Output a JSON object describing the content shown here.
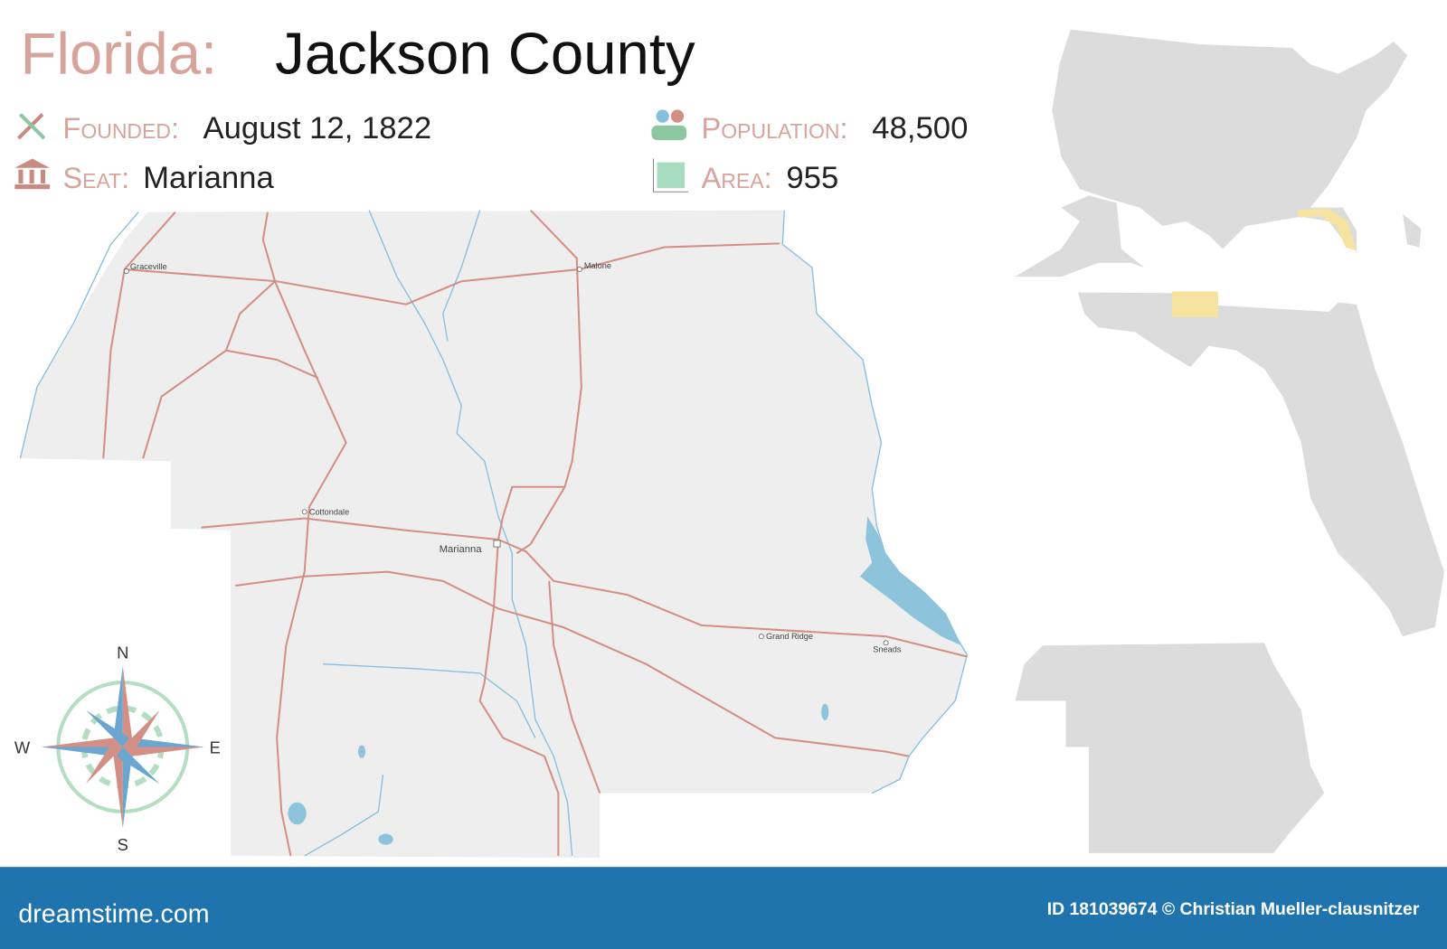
{
  "header": {
    "state": "Florida:",
    "county": "Jackson County"
  },
  "facts": {
    "founded_label": "Founded:",
    "founded": "August 12, 1822",
    "population_label": "Population:",
    "population": "48,500",
    "seat_label": "Seat:",
    "seat": "Marianna",
    "area_label": "Area:",
    "area": "955"
  },
  "towns": [
    "Graceville",
    "Malone",
    "Cottondale",
    "Marianna",
    "Grand Ridge",
    "Sneads"
  ],
  "compass": {
    "n": "N",
    "s": "S",
    "w": "W",
    "e": "E"
  },
  "footer": {
    "site": "dreamstime.com",
    "credit": "ID 181039674 © Christian Mueller-clausnitzer"
  }
}
